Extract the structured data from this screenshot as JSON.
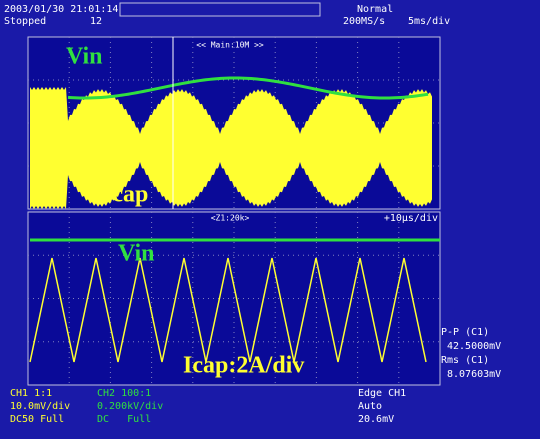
{
  "header": {
    "timestamp": "2003/01/30 21:01:14",
    "status": "Stopped",
    "count": "12",
    "mode": "Normal",
    "sample_rate": "200MS/s",
    "timebase": "5ms/div"
  },
  "upper": {
    "zoom_label": "<< Main:10M >>",
    "vin_label": "Vin",
    "icap_label": "Icap"
  },
  "lower": {
    "zoom_label": "<Z1:20k>",
    "timebase": "+10µs/div",
    "vin_label": "Vin",
    "icap_label": "Icap:2A/div"
  },
  "measurements": [
    {
      "label": "P-P (C1)",
      "value": "42.5000mV"
    },
    {
      "label": "Rms (C1)",
      "value": "8.07603mV"
    }
  ],
  "channels": [
    {
      "name": "CH1 1:1",
      "scale": "10.0mV/div",
      "coupling": "DC50 Full"
    },
    {
      "name": "CH2 100:1",
      "scale": "0.200kV/div",
      "coupling": "DC   Full"
    }
  ],
  "trigger": {
    "source": "Edge CH1",
    "mode": "Auto",
    "level": "20.6mV"
  }
}
